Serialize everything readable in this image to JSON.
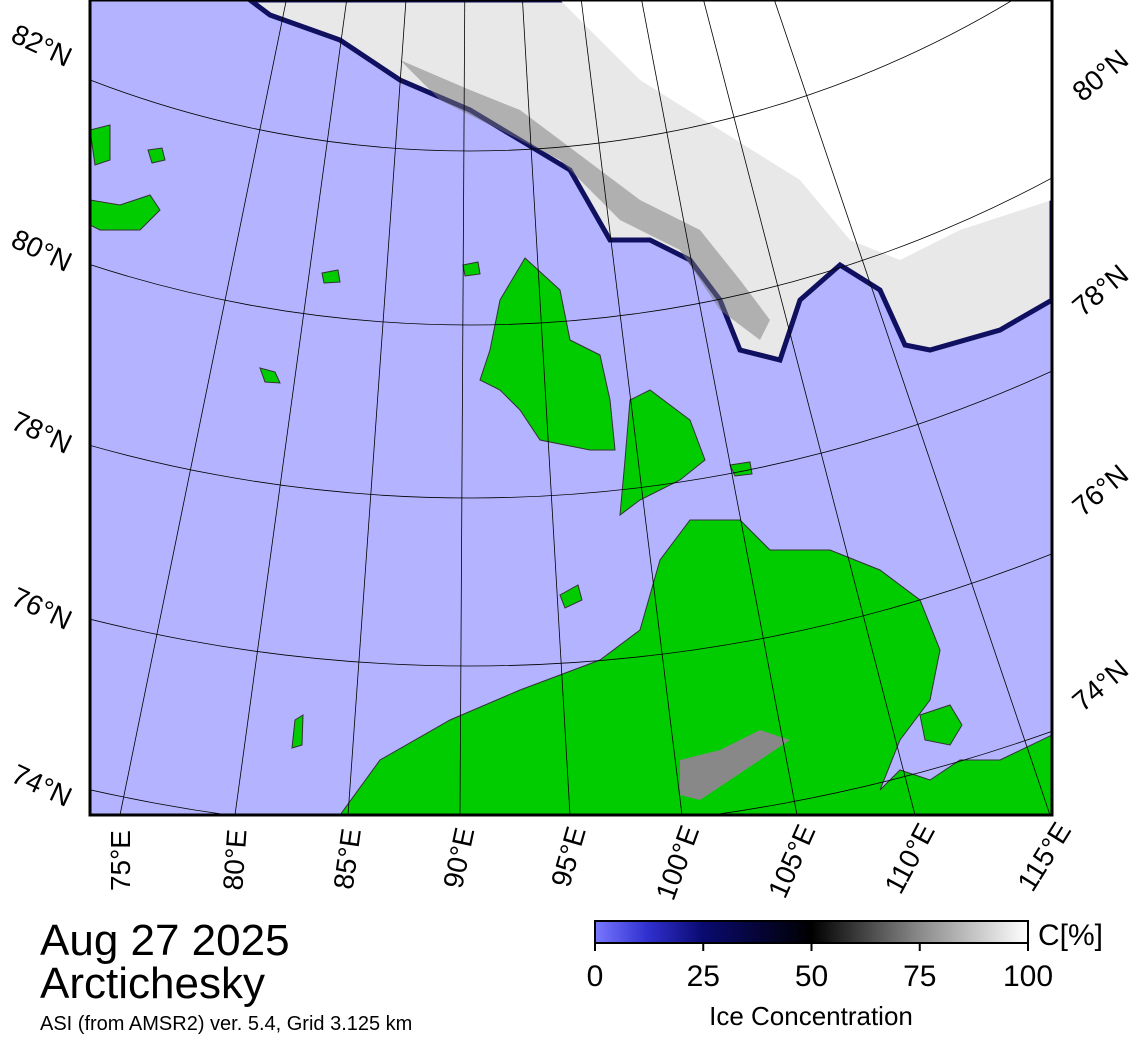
{
  "map": {
    "left_lat_labels": [
      "82°N",
      "80°N",
      "78°N",
      "76°N",
      "74°N"
    ],
    "right_lat_labels": [
      "80°N",
      "78°N",
      "76°N",
      "74°N"
    ],
    "lon_labels": [
      "75°E",
      "80°E",
      "85°E",
      "90°E",
      "95°E",
      "100°E",
      "105°E",
      "110°E",
      "115°E"
    ]
  },
  "date": "Aug 27 2025",
  "region": "Arctichesky",
  "source": "ASI (from AMSR2) ver. 5.4,  Grid 3.125 km",
  "colorbar": {
    "unit": "C[%]",
    "title": "Ice Concentration",
    "range": [
      0,
      100
    ],
    "ticks": [
      0,
      25,
      50,
      75,
      100
    ]
  }
}
